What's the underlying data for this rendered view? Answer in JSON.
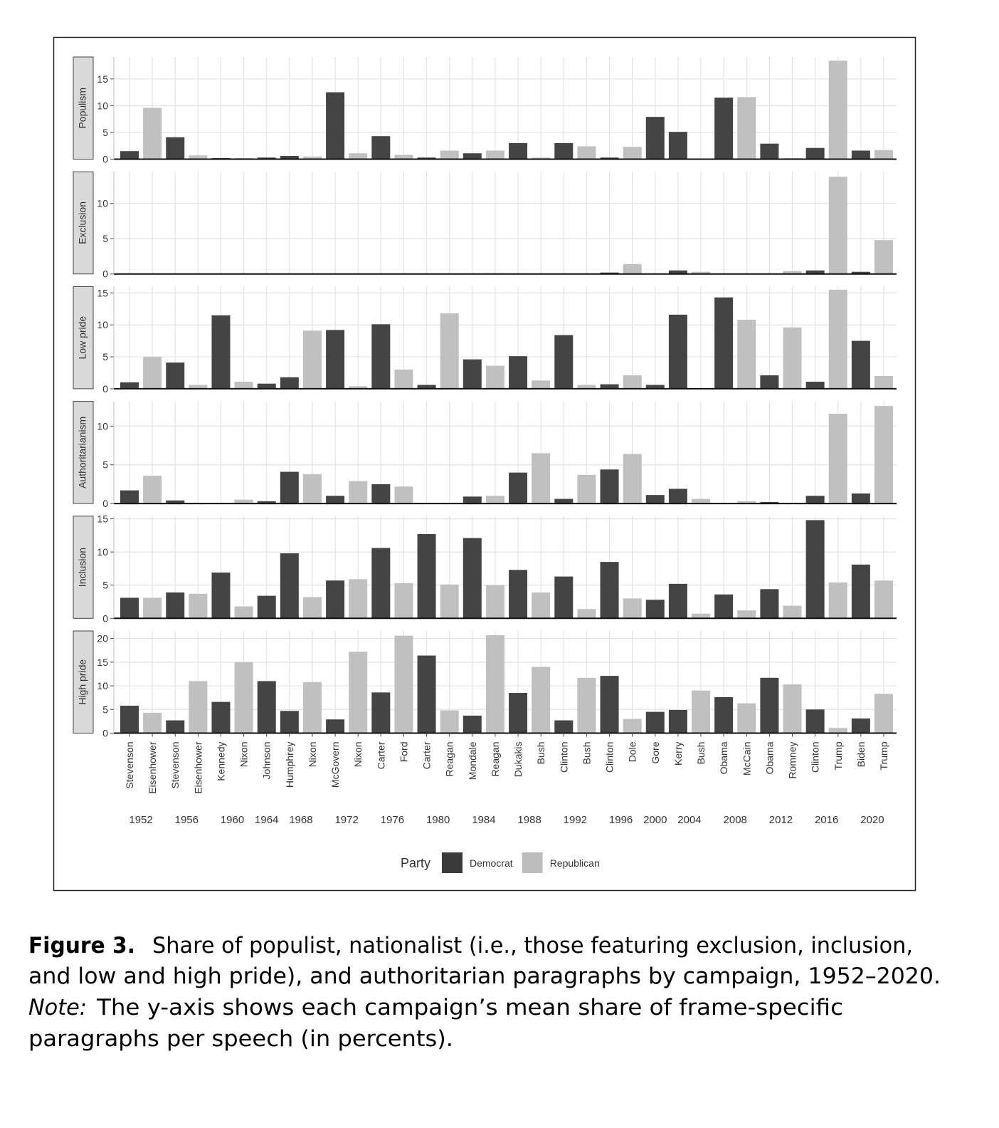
{
  "chart_data": {
    "type": "bar",
    "categories": [
      "Stevenson",
      "Eisenhower",
      "Stevenson",
      "Eisenhower",
      "Kennedy",
      "Nixon",
      "Johnson",
      "Humphrey",
      "Nixon",
      "McGovern",
      "Nixon",
      "Carter",
      "Ford",
      "Carter",
      "Reagan",
      "Mondale",
      "Reagan",
      "Dukakis",
      "Bush",
      "Clinton",
      "Bush",
      "Clinton",
      "Dole",
      "Gore",
      "Kerry",
      "Bush",
      "Obama",
      "McCain",
      "Obama",
      "Romney",
      "Clinton",
      "Trump",
      "Biden",
      "Trump"
    ],
    "x_groups": [
      "1952",
      null,
      "1956",
      null,
      "1960",
      null,
      "1964",
      "1968",
      null,
      "1972",
      null,
      "1976",
      null,
      "1980",
      null,
      "1984",
      null,
      "1988",
      null,
      "1992",
      null,
      "1996",
      null,
      "2000",
      "2004",
      null,
      "2008",
      null,
      "2012",
      null,
      "2016",
      null,
      "2020",
      null
    ],
    "legend_title": "Party",
    "series": [
      {
        "name": "Democrat",
        "color": "#3a3a3a"
      },
      {
        "name": "Republican",
        "color": "#bdbdbd"
      }
    ],
    "grid": true,
    "facets": [
      {
        "label": "Populism",
        "ylim": [
          0,
          19.1
        ],
        "yticks": [
          0,
          5,
          10,
          15
        ],
        "values": [
          [
            1.5,
            null,
            4.1,
            null,
            0.2,
            null,
            0.3,
            0.6,
            null,
            12.5,
            null,
            4.3,
            null,
            0.3,
            null,
            1.1,
            null,
            3.0,
            null,
            3.0,
            null,
            0.3,
            null,
            7.9,
            5.1,
            null,
            11.5,
            null,
            2.9,
            null,
            2.1,
            null,
            1.6,
            null
          ],
          [
            null,
            9.6,
            null,
            0.7,
            null,
            0.2,
            null,
            null,
            0.5,
            null,
            1.1,
            null,
            0.8,
            null,
            1.6,
            null,
            1.6,
            null,
            0.3,
            null,
            2.4,
            null,
            2.3,
            null,
            null,
            0,
            null,
            11.6,
            null,
            0.2,
            null,
            18.4,
            null,
            1.7
          ]
        ]
      },
      {
        "label": "Exclusion",
        "ylim": [
          0,
          14.5
        ],
        "yticks": [
          0,
          5,
          10
        ],
        "values": [
          [
            0,
            null,
            0,
            null,
            0,
            null,
            0,
            0,
            null,
            0,
            null,
            0,
            null,
            0,
            null,
            0,
            null,
            0,
            null,
            0,
            null,
            0.2,
            null,
            0,
            0.5,
            null,
            0,
            null,
            0,
            null,
            0.5,
            null,
            0.3,
            null
          ],
          [
            null,
            0,
            null,
            0,
            null,
            0,
            null,
            null,
            0,
            null,
            0,
            null,
            0,
            null,
            0,
            null,
            0.1,
            null,
            0,
            null,
            0,
            null,
            1.4,
            null,
            null,
            0.3,
            null,
            0,
            null,
            0.4,
            null,
            13.8,
            null,
            4.8
          ]
        ]
      },
      {
        "label": "Low pride",
        "ylim": [
          0,
          16
        ],
        "yticks": [
          0,
          5,
          10,
          15
        ],
        "values": [
          [
            1.0,
            null,
            4.1,
            null,
            11.5,
            null,
            0.8,
            1.8,
            null,
            9.2,
            null,
            10.1,
            null,
            0.6,
            null,
            4.6,
            null,
            5.1,
            null,
            8.4,
            null,
            0.7,
            null,
            0.6,
            11.6,
            null,
            14.3,
            null,
            2.1,
            null,
            1.1,
            null,
            7.5,
            null
          ],
          [
            null,
            5.0,
            null,
            0.6,
            null,
            1.1,
            null,
            null,
            9.1,
            null,
            0.4,
            null,
            3.0,
            null,
            11.8,
            null,
            3.6,
            null,
            1.3,
            null,
            0.6,
            null,
            2.1,
            null,
            null,
            0,
            null,
            10.8,
            null,
            9.6,
            null,
            15.5,
            null,
            2.0
          ]
        ]
      },
      {
        "label": "Authoritarianism",
        "ylim": [
          0,
          13.2
        ],
        "yticks": [
          0,
          5,
          10
        ],
        "values": [
          [
            1.7,
            null,
            0.4,
            null,
            0,
            null,
            0.3,
            4.1,
            null,
            1.0,
            null,
            2.5,
            null,
            0,
            null,
            0.9,
            null,
            4.0,
            null,
            0.6,
            null,
            4.4,
            null,
            1.1,
            1.9,
            null,
            0,
            null,
            0.2,
            null,
            1.0,
            null,
            1.3,
            null
          ],
          [
            null,
            3.6,
            null,
            0.1,
            null,
            0.5,
            null,
            null,
            3.8,
            null,
            2.9,
            null,
            2.2,
            null,
            0,
            null,
            1.0,
            null,
            6.5,
            null,
            3.7,
            null,
            6.4,
            null,
            null,
            0.6,
            null,
            0.3,
            null,
            0.1,
            null,
            11.6,
            null,
            12.6
          ]
        ]
      },
      {
        "label": "Inclusion",
        "ylim": [
          0,
          15.4
        ],
        "yticks": [
          0,
          5,
          10,
          15
        ],
        "values": [
          [
            3.1,
            null,
            3.9,
            null,
            6.9,
            null,
            3.4,
            9.8,
            null,
            5.7,
            null,
            10.6,
            null,
            12.7,
            null,
            12.1,
            null,
            7.3,
            null,
            6.3,
            null,
            8.5,
            null,
            2.8,
            5.2,
            null,
            3.6,
            null,
            4.4,
            null,
            14.8,
            null,
            8.1,
            null
          ],
          [
            null,
            3.1,
            null,
            3.7,
            null,
            1.8,
            null,
            null,
            3.2,
            null,
            5.9,
            null,
            5.3,
            null,
            5.1,
            null,
            5.0,
            null,
            3.9,
            null,
            1.4,
            null,
            3.0,
            null,
            null,
            0.7,
            null,
            1.2,
            null,
            1.9,
            null,
            5.4,
            null,
            5.7
          ]
        ]
      },
      {
        "label": "High pride",
        "ylim": [
          0,
          21.6
        ],
        "yticks": [
          0,
          5,
          10,
          15,
          20
        ],
        "values": [
          [
            5.8,
            null,
            2.7,
            null,
            6.6,
            null,
            11.0,
            4.7,
            null,
            2.9,
            null,
            8.6,
            null,
            16.4,
            null,
            3.7,
            null,
            8.5,
            null,
            2.7,
            null,
            12.1,
            null,
            4.5,
            4.9,
            null,
            7.6,
            null,
            11.7,
            null,
            5.0,
            null,
            3.1,
            null
          ],
          [
            null,
            4.3,
            null,
            11.0,
            null,
            15.0,
            null,
            null,
            10.8,
            null,
            17.2,
            null,
            20.6,
            null,
            4.8,
            null,
            20.7,
            null,
            14.0,
            null,
            11.7,
            null,
            3.0,
            null,
            null,
            9.0,
            null,
            6.3,
            null,
            10.3,
            null,
            1.1,
            null,
            8.3
          ]
        ]
      }
    ]
  },
  "caption": {
    "label": "Figure 3.",
    "lines": [
      "Share of populist, nationalist (i.e., those featuring exclusion, inclusion,",
      "and low and high pride), and authoritarian paragraphs by campaign, 1952–2020."
    ],
    "note_label": "Note:",
    "note_lines": [
      "The y-axis shows each campaign’s mean share of frame-specific",
      "paragraphs per speech (in percents)."
    ]
  }
}
